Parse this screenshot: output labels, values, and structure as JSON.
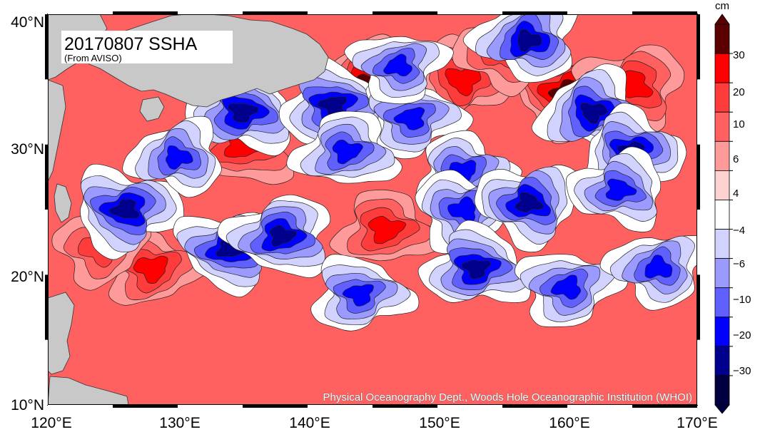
{
  "map": {
    "title": "20170807 SSHA",
    "source": "(From AVISO)",
    "credit": "Physical Oceanography Dept., Woods Hole Oceanographic Institution (WHOI)",
    "lat_ticks": [
      "10°N",
      "20°N",
      "30°N",
      "40°N"
    ],
    "lon_ticks": [
      "120°E",
      "130°E",
      "140°E",
      "150°E",
      "160°E",
      "170°E"
    ],
    "land_color": "#c8c8c8"
  },
  "colorbar": {
    "unit": "cm",
    "labels": [
      "30",
      "20",
      "10",
      "6",
      "4",
      "−4",
      "−6",
      "−10",
      "−20",
      "−30"
    ],
    "colors": [
      "#5a0000",
      "#ff0000",
      "#ff3c3c",
      "#ff6060",
      "#ff9a9a",
      "#ffd2d2",
      "#ffffff",
      "#d2d2ff",
      "#9a9aff",
      "#6060ff",
      "#0000ff",
      "#00008c",
      "#000040"
    ]
  },
  "chart_data": {
    "type": "heatmap",
    "title": "20170807 SSHA",
    "subtitle": "(From AVISO)",
    "variable": "sea surface height anomaly",
    "unit": "cm",
    "xlim": [
      120,
      170
    ],
    "ylim": [
      10,
      40
    ],
    "x_ticks": [
      "120°E",
      "130°E",
      "140°E",
      "150°E",
      "160°E",
      "170°E"
    ],
    "y_ticks": [
      "10°N",
      "20°N",
      "30°N",
      "40°N"
    ],
    "levels": [
      -30,
      -20,
      -10,
      -6,
      -4,
      4,
      6,
      10,
      20,
      30
    ],
    "features": [
      {
        "kind": "positive",
        "lon": 145,
        "lat": 34.5,
        "strength": 2.3
      },
      {
        "kind": "positive",
        "lon": 152,
        "lat": 35,
        "strength": 1.7
      },
      {
        "kind": "positive",
        "lon": 160,
        "lat": 34,
        "strength": 2.1
      },
      {
        "kind": "positive",
        "lon": 165,
        "lat": 34.5,
        "strength": 2.0
      },
      {
        "kind": "positive",
        "lon": 135,
        "lat": 30,
        "strength": 2.0
      },
      {
        "kind": "positive",
        "lon": 146,
        "lat": 23.5,
        "strength": 1.6
      },
      {
        "kind": "positive",
        "lon": 128,
        "lat": 20.5,
        "strength": 1.5
      },
      {
        "kind": "positive",
        "lon": 124,
        "lat": 22,
        "strength": 1.3
      },
      {
        "kind": "positive",
        "lon": 155,
        "lat": 37,
        "strength": 1.4
      },
      {
        "kind": "negative",
        "lon": 135,
        "lat": 32.5,
        "strength": 2.1
      },
      {
        "kind": "negative",
        "lon": 142,
        "lat": 33,
        "strength": 2.0
      },
      {
        "kind": "negative",
        "lon": 148,
        "lat": 32,
        "strength": 1.7
      },
      {
        "kind": "negative",
        "lon": 147,
        "lat": 36,
        "strength": 1.4
      },
      {
        "kind": "negative",
        "lon": 157,
        "lat": 38,
        "strength": 1.9
      },
      {
        "kind": "negative",
        "lon": 162,
        "lat": 32.5,
        "strength": 2.0
      },
      {
        "kind": "negative",
        "lon": 165,
        "lat": 29.5,
        "strength": 1.8
      },
      {
        "kind": "negative",
        "lon": 126,
        "lat": 25,
        "strength": 2.1
      },
      {
        "kind": "negative",
        "lon": 134,
        "lat": 22,
        "strength": 1.9
      },
      {
        "kind": "negative",
        "lon": 138,
        "lat": 23,
        "strength": 1.9
      },
      {
        "kind": "negative",
        "lon": 143,
        "lat": 29.5,
        "strength": 1.7
      },
      {
        "kind": "negative",
        "lon": 152,
        "lat": 28,
        "strength": 1.5
      },
      {
        "kind": "negative",
        "lon": 152,
        "lat": 25,
        "strength": 1.7
      },
      {
        "kind": "negative",
        "lon": 157,
        "lat": 25.5,
        "strength": 1.9
      },
      {
        "kind": "negative",
        "lon": 164,
        "lat": 26.5,
        "strength": 1.6
      },
      {
        "kind": "negative",
        "lon": 153,
        "lat": 20.5,
        "strength": 1.9
      },
      {
        "kind": "negative",
        "lon": 144,
        "lat": 18.5,
        "strength": 1.6
      },
      {
        "kind": "negative",
        "lon": 160,
        "lat": 19,
        "strength": 1.7
      },
      {
        "kind": "negative",
        "lon": 167,
        "lat": 20.5,
        "strength": 1.6
      },
      {
        "kind": "negative",
        "lon": 130,
        "lat": 29,
        "strength": 1.5
      }
    ]
  }
}
